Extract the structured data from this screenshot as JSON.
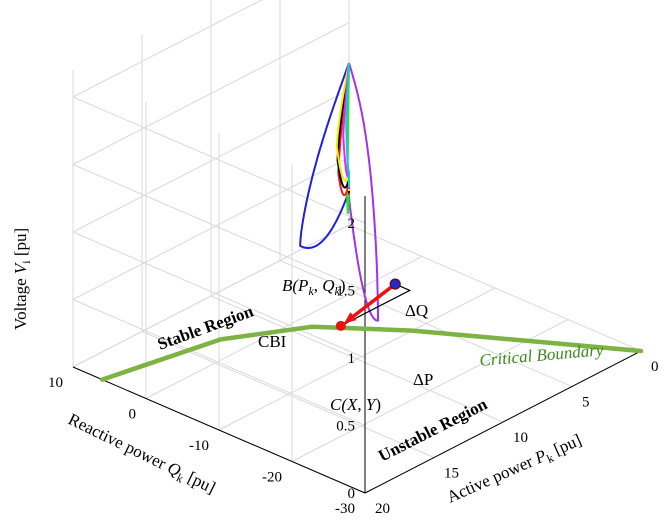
{
  "chart_data": {
    "type": "line",
    "title": "",
    "xlabel": "Active power P_k [pu]",
    "ylabel": "Reactive power Q_k [pu]",
    "zlabel": "Voltage V_i [pu]",
    "x_ticks": [
      "0",
      "5",
      "10",
      "15",
      "20"
    ],
    "y_ticks": [
      "-30",
      "-20",
      "-10",
      "0",
      "10"
    ],
    "z_ticks": [
      "0",
      "0.5",
      "1",
      "1.5",
      "2"
    ],
    "xlim": [
      0,
      20
    ],
    "ylim": [
      -30,
      10
    ],
    "zlim": [
      0,
      2.2
    ],
    "grid": true,
    "labels": {
      "xlabel_main": "Active power ",
      "xlabel_sym": "P",
      "xlabel_sub": "k",
      "xlabel_unit": " [pu]",
      "ylabel_main": "Reactive power ",
      "ylabel_sym": "Q",
      "ylabel_sub": "k",
      "ylabel_unit": " [pu]",
      "zlabel_main": "Voltage ",
      "zlabel_sym": "V",
      "zlabel_sub": "i",
      "zlabel_unit": " [pu]"
    },
    "annotations": {
      "stable": "Stable Region",
      "unstable": "Unstable Region",
      "critical": "Critical Boundary",
      "cbi": "CBI",
      "b_label": "B(",
      "b_p": "P",
      "b_psub": "k",
      "b_sep": ", ",
      "b_q": "Q",
      "b_qsub": "k",
      "b_close": ")",
      "c_label": "C(",
      "c_x": "X",
      "c_sep": ", ",
      "c_y": "Y",
      "c_close": ")",
      "dq": "ΔQ",
      "dp": "ΔP"
    },
    "tip": {
      "x": 0,
      "y": 10,
      "z": 1.2
    },
    "series": [
      {
        "color": "#a032f0",
        "x_max": 18,
        "y_min": -28,
        "z_top": 2.05,
        "z_bot": 0.2
      },
      {
        "color": "#1f1fe0",
        "x_max": 12,
        "y_min": -6,
        "z_top": 1.45,
        "z_bot": 0.25
      },
      {
        "color": "#2ce02c",
        "x_max": 7,
        "y_min": -3,
        "z_top": 1.36,
        "z_bot": 0.3
      },
      {
        "color": "#f01818",
        "x_max": 5,
        "y_min": 2,
        "z_top": 1.34,
        "z_bot": 0.32
      },
      {
        "color": "#000000",
        "x_max": 4,
        "y_min": 4,
        "z_top": 1.32,
        "z_bot": 0.34
      },
      {
        "color": "#f0f000",
        "x_max": 3,
        "y_min": 6,
        "z_top": 1.3,
        "z_bot": 0.36
      },
      {
        "color": "#f020f0",
        "x_max": 2,
        "y_min": 7,
        "z_top": 1.28,
        "z_bot": 0.38
      },
      {
        "color": "#18c8d8",
        "x_max": 1,
        "y_min": 8.5,
        "z_top": 1.26,
        "z_bot": 0.4
      }
    ],
    "critical_boundary": {
      "color": "#7cb342",
      "points": [
        [
          0,
          -30
        ],
        [
          3,
          -20
        ],
        [
          6,
          -10
        ],
        [
          9,
          -2
        ],
        [
          13,
          3
        ],
        [
          20,
          6
        ]
      ]
    },
    "point_B": {
      "x": 3,
      "y": -2,
      "z": 0
    },
    "point_C": {
      "x": 8,
      "y": -4,
      "z": 0
    }
  }
}
